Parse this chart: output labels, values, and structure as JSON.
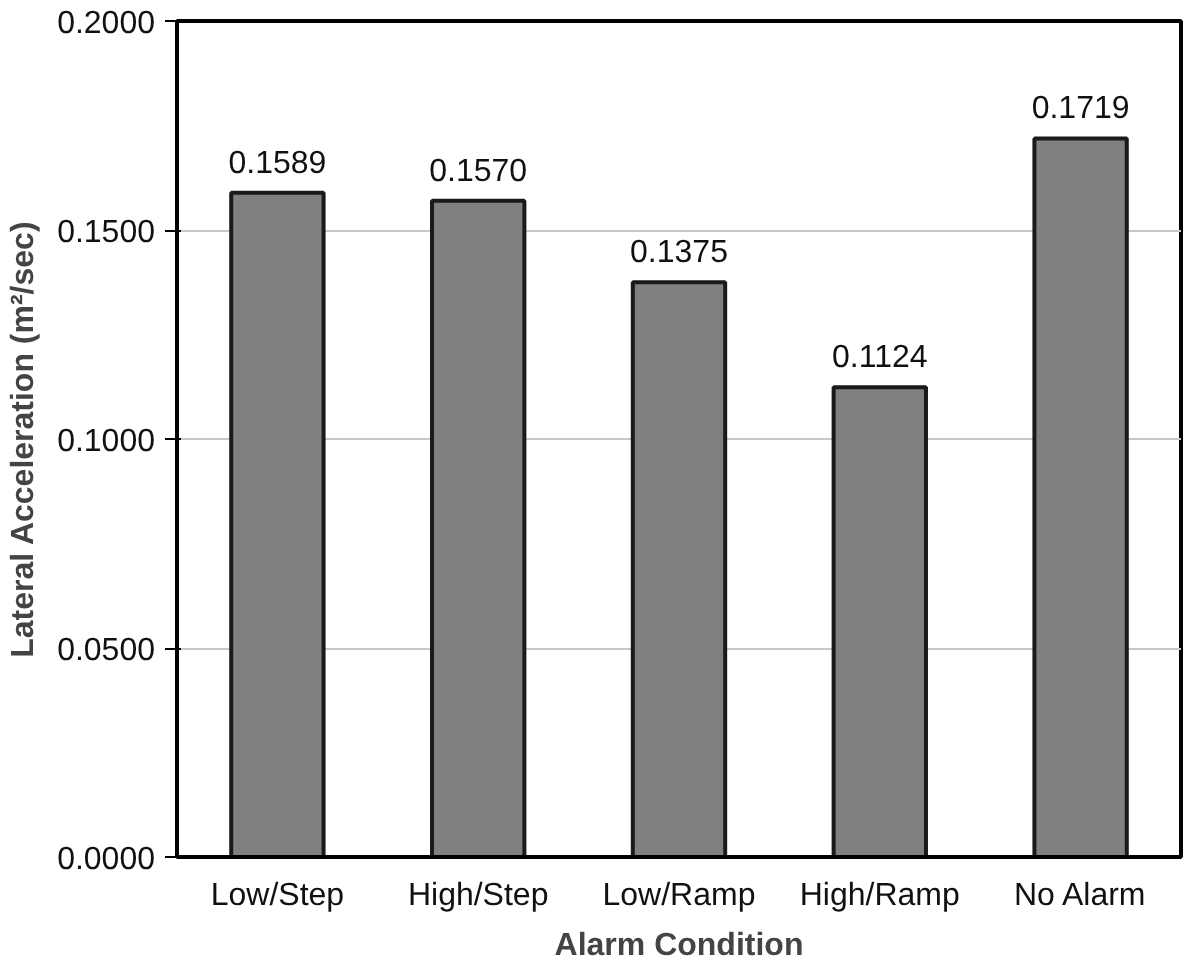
{
  "chart_data": {
    "type": "bar",
    "xlabel": "Alarm Condition",
    "ylabel": "Lateral Acceleration (m²/sec)",
    "categories": [
      "Low/Step",
      "High/Step",
      "Low/Ramp",
      "High/Ramp",
      "No Alarm"
    ],
    "values": [
      0.1589,
      0.157,
      0.1375,
      0.1124,
      0.1719
    ],
    "color": "#808080",
    "ylim": [
      0,
      0.2
    ],
    "yticks": [
      {
        "value": 0,
        "label": "0.0000"
      },
      {
        "value": 0.05,
        "label": "0.0500"
      },
      {
        "value": 0.1,
        "label": "0.1000"
      },
      {
        "value": 0.15,
        "label": "0.1500"
      },
      {
        "value": 0.2,
        "label": "0.2000"
      }
    ],
    "value_labels": [
      "0.1589",
      "0.1570",
      "0.1375",
      "0.1124",
      "0.1719"
    ],
    "grid": "y"
  }
}
